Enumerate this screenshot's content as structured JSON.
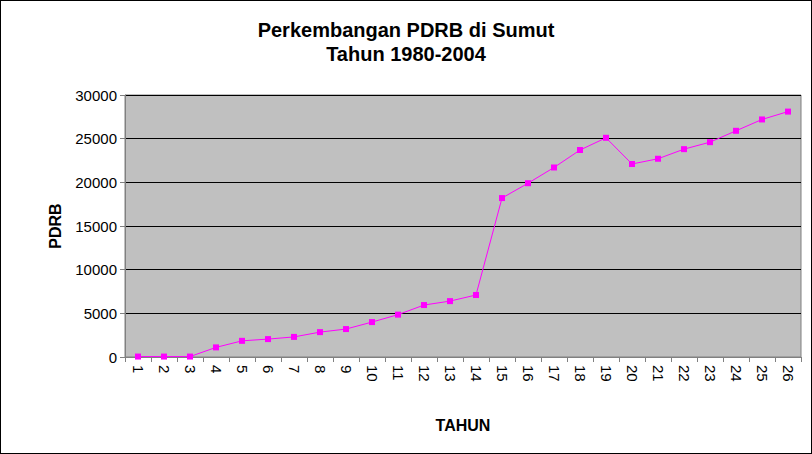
{
  "chart_data": {
    "type": "line",
    "title": "Perkembangan PDRB di Sumut",
    "subtitle": "Tahun 1980-2004",
    "x_label": "TAHUN",
    "y_label": "PDRB",
    "categories": [
      "1",
      "2",
      "3",
      "4",
      "5",
      "6",
      "7",
      "8",
      "9",
      "10",
      "11",
      "12",
      "13",
      "14",
      "15",
      "16",
      "17",
      "18",
      "19",
      "20",
      "21",
      "22",
      "23",
      "24",
      "25",
      "26"
    ],
    "values": [
      50,
      50,
      50,
      1100,
      1850,
      2050,
      2300,
      2850,
      3200,
      4000,
      4850,
      5950,
      6400,
      7100,
      18200,
      19900,
      21700,
      23700,
      25100,
      22100,
      22700,
      23800,
      24600,
      25900,
      27200,
      28100
    ],
    "color": "#ff00ff",
    "marker": "square",
    "ylim": [
      0,
      30000
    ],
    "yticks": [
      0,
      5000,
      10000,
      15000,
      20000,
      25000,
      30000
    ],
    "grid": true
  }
}
